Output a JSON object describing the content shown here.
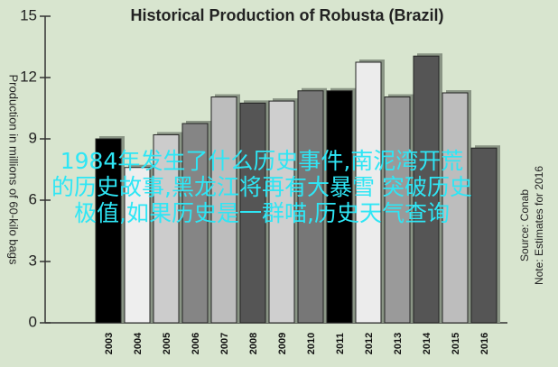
{
  "chart_data": {
    "type": "bar",
    "title": "Historical Production of Robusta (Brazil)",
    "y_label": "Production in millions of 60-kilo bags",
    "notes": [
      "Source: Conab",
      "Note: Estimates for 2016"
    ],
    "categories": [
      "2003",
      "2004",
      "2005",
      "2006",
      "2007",
      "2008",
      "2009",
      "2010",
      "2011",
      "2012",
      "2013",
      "2014",
      "2015",
      "2016"
    ],
    "values": [
      9.0,
      7.6,
      9.2,
      9.75,
      11.05,
      10.75,
      10.85,
      11.35,
      11.35,
      12.75,
      11.05,
      13.05,
      11.25,
      8.55
    ],
    "colors": [
      "#000000",
      "#eeeeee",
      "#cccccc",
      "#858585",
      "#bdbdbd",
      "#555555",
      "#cfcfcf",
      "#777777",
      "#000000",
      "#ececec",
      "#9a9a9a",
      "#555555",
      "#bdbdbd",
      "#555555"
    ],
    "ylim": [
      0,
      15
    ],
    "yticks": [
      0,
      3,
      6,
      9,
      12,
      15
    ],
    "overlay_text": [
      "1984年发生了什么历史事件,南泥湾开荒",
      "的历史故事,黑龙江将再有大暴雪 突破历史",
      "极值,如果历史是一群喵,历史天气查询"
    ]
  }
}
